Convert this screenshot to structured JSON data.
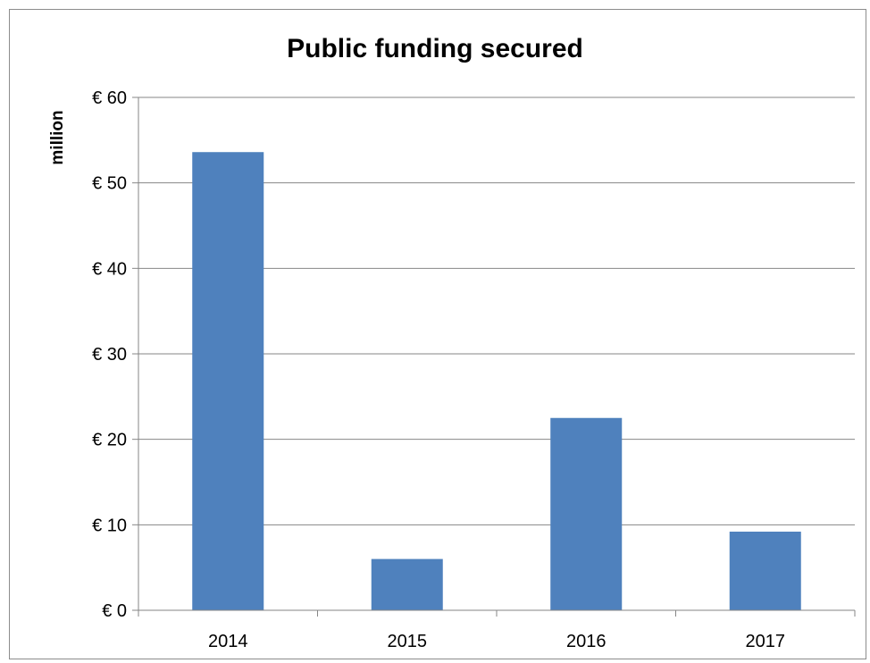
{
  "chart_data": {
    "type": "bar",
    "title": "Public funding secured",
    "xlabel": "",
    "ylabel": "million",
    "categories": [
      "2014",
      "2015",
      "2016",
      "2017"
    ],
    "values": [
      53.6,
      6.0,
      22.5,
      9.2
    ],
    "ylim": [
      0,
      60
    ],
    "yticks": [
      0,
      10,
      20,
      30,
      40,
      50,
      60
    ],
    "ytick_labels": [
      "€ 0",
      "€ 10",
      "€ 20",
      "€ 30",
      "€ 40",
      "€ 50",
      "€ 60"
    ],
    "grid": true,
    "legend": "none",
    "bar_color": "#4f81bd",
    "grid_color": "#868686"
  }
}
